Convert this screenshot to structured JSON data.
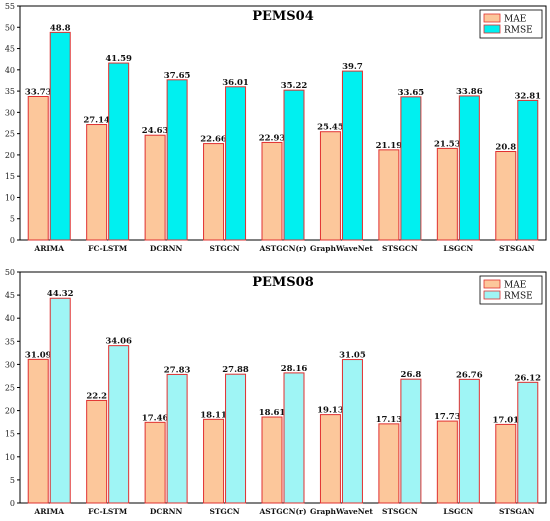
{
  "chart_data": [
    {
      "type": "bar",
      "title": "PEMS04",
      "categories": [
        "ARIMA",
        "FC-LSTM",
        "DCRNN",
        "STGCN",
        "ASTGCN(r)",
        "GraphWaveNet",
        "STSGCN",
        "LSGCN",
        "STSGAN"
      ],
      "series": [
        {
          "name": "MAE",
          "color": "#fcc79b",
          "values": [
            33.73,
            27.14,
            24.63,
            22.66,
            22.93,
            25.45,
            21.19,
            21.53,
            20.8
          ]
        },
        {
          "name": "RMSE",
          "color": "#00f0f0",
          "values": [
            48.8,
            41.59,
            37.65,
            36.01,
            35.22,
            39.7,
            33.65,
            33.86,
            32.81
          ]
        }
      ],
      "value_labels": [
        [
          "33.73",
          "27.14",
          "24.63",
          "22.66",
          "22.93",
          "25.45",
          "21.19",
          "21.53",
          "20.8"
        ],
        [
          "48.8",
          "41.59",
          "37.65",
          "36.01",
          "35.22",
          "39.7",
          "33.65",
          "33.86",
          "32.81"
        ]
      ],
      "ylim": [
        0,
        55
      ],
      "yticks": [
        "0",
        "5",
        "10",
        "15",
        "20",
        "25",
        "30",
        "35",
        "40",
        "45",
        "50",
        "55"
      ],
      "legend": "top-right",
      "grid": false,
      "bar_edge_color": "#e03030"
    },
    {
      "type": "bar",
      "title": "PEMS08",
      "categories": [
        "ARIMA",
        "FC-LSTM",
        "DCRNN",
        "STGCN",
        "ASTGCN(r)",
        "GraphWaveNet",
        "STSGCN",
        "LSGCN",
        "STSGAN"
      ],
      "series": [
        {
          "name": "MAE",
          "color": "#fcc79b",
          "values": [
            31.09,
            22.2,
            17.46,
            18.11,
            18.61,
            19.13,
            17.13,
            17.73,
            17.01
          ]
        },
        {
          "name": "RMSE",
          "color": "#9ff5f5",
          "values": [
            44.32,
            34.06,
            27.83,
            27.88,
            28.16,
            31.05,
            26.8,
            26.76,
            26.12
          ]
        }
      ],
      "value_labels": [
        [
          "31.09",
          "22.2",
          "17.46",
          "18.11",
          "18.61",
          "19.13",
          "17.13",
          "17.73",
          "17.01"
        ],
        [
          "44.32",
          "34.06",
          "27.83",
          "27.88",
          "28.16",
          "31.05",
          "26.8",
          "26.76",
          "26.12"
        ]
      ],
      "ylim": [
        0,
        50
      ],
      "yticks": [
        "0",
        "5",
        "10",
        "15",
        "20",
        "25",
        "30",
        "35",
        "40",
        "45",
        "50"
      ],
      "legend": "top-right",
      "grid": false,
      "bar_edge_color": "#e03030"
    }
  ]
}
